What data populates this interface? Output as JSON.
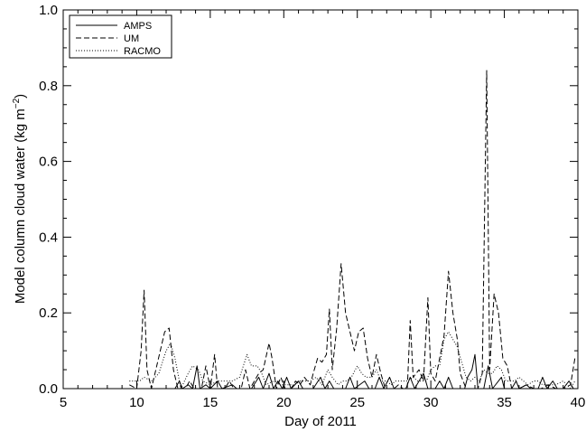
{
  "chart_data": {
    "type": "line",
    "xlabel": "Day of 2011",
    "ylabel_main": "Model column cloud water (kg m",
    "ylabel_sup": "−2",
    "ylabel_tail": ")",
    "xlim": [
      5,
      40
    ],
    "ylim": [
      0,
      1.0
    ],
    "x_ticks": [
      5,
      10,
      15,
      20,
      25,
      30,
      35,
      40
    ],
    "y_ticks": [
      0.0,
      0.2,
      0.4,
      0.6,
      0.8,
      1.0
    ],
    "x_tick_labels": [
      "5",
      "10",
      "15",
      "20",
      "25",
      "30",
      "35",
      "40"
    ],
    "y_tick_labels": [
      "0.0",
      "0.2",
      "0.4",
      "0.6",
      "0.8",
      "1.0"
    ],
    "grid": false,
    "legend_position": "top-left",
    "series": [
      {
        "name": "AMPS",
        "style": "solid",
        "points": [
          [
            9.5,
            0
          ],
          [
            12.6,
            0
          ],
          [
            12.9,
            0.02
          ],
          [
            13.1,
            0
          ],
          [
            13.5,
            0.01
          ],
          [
            13.8,
            0
          ],
          [
            14.1,
            0.06
          ],
          [
            14.3,
            0
          ],
          [
            14.7,
            0.01
          ],
          [
            15.0,
            0
          ],
          [
            15.5,
            0.02
          ],
          [
            15.8,
            0
          ],
          [
            16.5,
            0.01
          ],
          [
            16.8,
            0
          ],
          [
            17.8,
            0
          ],
          [
            18.3,
            0.03
          ],
          [
            18.6,
            0
          ],
          [
            19.0,
            0.04
          ],
          [
            19.3,
            0
          ],
          [
            19.6,
            0.02
          ],
          [
            19.9,
            0
          ],
          [
            20.2,
            0.03
          ],
          [
            20.5,
            0
          ],
          [
            21.0,
            0.02
          ],
          [
            21.3,
            0
          ],
          [
            22.0,
            0
          ],
          [
            22.5,
            0.03
          ],
          [
            22.8,
            0
          ],
          [
            23.1,
            0.02
          ],
          [
            23.4,
            0
          ],
          [
            24.2,
            0
          ],
          [
            24.5,
            0.03
          ],
          [
            24.8,
            0
          ],
          [
            25.5,
            0.02
          ],
          [
            25.8,
            0
          ],
          [
            26.2,
            0
          ],
          [
            26.5,
            0.03
          ],
          [
            26.8,
            0
          ],
          [
            27.2,
            0.03
          ],
          [
            27.5,
            0
          ],
          [
            28.3,
            0
          ],
          [
            28.6,
            0.03
          ],
          [
            28.9,
            0
          ],
          [
            29.5,
            0.04
          ],
          [
            29.8,
            0
          ],
          [
            30.3,
            0
          ],
          [
            30.6,
            0.02
          ],
          [
            30.9,
            0
          ],
          [
            31.2,
            0.03
          ],
          [
            31.5,
            0
          ],
          [
            32.3,
            0
          ],
          [
            32.5,
            0.03
          ],
          [
            32.8,
            0.05
          ],
          [
            33.0,
            0.09
          ],
          [
            33.2,
            0
          ],
          [
            33.6,
            0
          ],
          [
            33.9,
            0.06
          ],
          [
            34.2,
            0
          ],
          [
            34.8,
            0.03
          ],
          [
            35.0,
            0
          ],
          [
            35.5,
            0
          ],
          [
            35.8,
            0.02
          ],
          [
            36.0,
            0
          ],
          [
            36.5,
            0.01
          ],
          [
            36.8,
            0
          ],
          [
            37.3,
            0
          ],
          [
            37.6,
            0.03
          ],
          [
            37.9,
            0
          ],
          [
            38.3,
            0.02
          ],
          [
            38.6,
            0
          ],
          [
            39.0,
            0
          ],
          [
            39.4,
            0.02
          ],
          [
            39.7,
            0
          ]
        ]
      },
      {
        "name": "UM",
        "style": "dashed",
        "points": [
          [
            9.5,
            0.01
          ],
          [
            10.0,
            0
          ],
          [
            10.3,
            0.1
          ],
          [
            10.5,
            0.26
          ],
          [
            10.7,
            0.05
          ],
          [
            11.0,
            0
          ],
          [
            11.3,
            0.05
          ],
          [
            11.6,
            0.1
          ],
          [
            11.9,
            0.15
          ],
          [
            12.2,
            0.16
          ],
          [
            12.5,
            0.05
          ],
          [
            12.8,
            0
          ],
          [
            13.3,
            0
          ],
          [
            13.6,
            0.02
          ],
          [
            13.9,
            0
          ],
          [
            14.4,
            0
          ],
          [
            14.7,
            0.06
          ],
          [
            15.0,
            0
          ],
          [
            15.3,
            0.09
          ],
          [
            15.5,
            0
          ],
          [
            16.0,
            0
          ],
          [
            16.3,
            0.02
          ],
          [
            16.6,
            0
          ],
          [
            17.1,
            0
          ],
          [
            17.4,
            0.05
          ],
          [
            17.7,
            0
          ],
          [
            18.0,
            0.02
          ],
          [
            18.3,
            0.04
          ],
          [
            18.6,
            0.05
          ],
          [
            19.0,
            0.12
          ],
          [
            19.2,
            0.08
          ],
          [
            19.5,
            0
          ],
          [
            19.8,
            0.03
          ],
          [
            20.1,
            0
          ],
          [
            20.5,
            0
          ],
          [
            20.8,
            0.02
          ],
          [
            21.1,
            0.01
          ],
          [
            21.4,
            0.03
          ],
          [
            21.8,
            0.01
          ],
          [
            22.0,
            0.04
          ],
          [
            22.3,
            0.08
          ],
          [
            22.6,
            0.07
          ],
          [
            22.9,
            0.09
          ],
          [
            23.1,
            0.21
          ],
          [
            23.3,
            0.05
          ],
          [
            23.6,
            0.16
          ],
          [
            23.9,
            0.33
          ],
          [
            24.2,
            0.2
          ],
          [
            24.5,
            0.15
          ],
          [
            24.8,
            0.1
          ],
          [
            25.1,
            0.15
          ],
          [
            25.4,
            0.16
          ],
          [
            25.7,
            0.08
          ],
          [
            26.0,
            0.03
          ],
          [
            26.3,
            0.09
          ],
          [
            26.6,
            0.04
          ],
          [
            26.9,
            0
          ],
          [
            27.5,
            0
          ],
          [
            27.8,
            0.01
          ],
          [
            28.1,
            0
          ],
          [
            28.4,
            0
          ],
          [
            28.6,
            0.18
          ],
          [
            28.8,
            0.03
          ],
          [
            29.2,
            0.05
          ],
          [
            29.5,
            0.02
          ],
          [
            29.8,
            0.24
          ],
          [
            30.0,
            0.04
          ],
          [
            30.3,
            0.02
          ],
          [
            30.6,
            0.08
          ],
          [
            30.9,
            0.14
          ],
          [
            31.2,
            0.31
          ],
          [
            31.5,
            0.2
          ],
          [
            31.8,
            0.13
          ],
          [
            32.0,
            0.04
          ],
          [
            32.4,
            0
          ],
          [
            32.8,
            0
          ],
          [
            33.2,
            0
          ],
          [
            33.5,
            0.04
          ],
          [
            33.8,
            0.84
          ],
          [
            34.0,
            0.05
          ],
          [
            34.3,
            0.25
          ],
          [
            34.6,
            0.2
          ],
          [
            34.9,
            0.08
          ],
          [
            35.2,
            0.06
          ],
          [
            35.5,
            0
          ],
          [
            36.0,
            0
          ],
          [
            36.5,
            0.01
          ],
          [
            37.0,
            0
          ],
          [
            37.5,
            0
          ],
          [
            38.0,
            0.01
          ],
          [
            38.5,
            0
          ],
          [
            39.0,
            0
          ],
          [
            39.5,
            0.01
          ],
          [
            39.8,
            0.08
          ]
        ]
      },
      {
        "name": "RACMO",
        "style": "dotted",
        "points": [
          [
            9.5,
            0.02
          ],
          [
            10.2,
            0.02
          ],
          [
            10.5,
            0.03
          ],
          [
            11.0,
            0.02
          ],
          [
            11.5,
            0.04
          ],
          [
            12.0,
            0.1
          ],
          [
            12.3,
            0.12
          ],
          [
            12.6,
            0.08
          ],
          [
            13.0,
            0
          ],
          [
            13.5,
            0.04
          ],
          [
            13.8,
            0.06
          ],
          [
            14.2,
            0.05
          ],
          [
            14.5,
            0.02
          ],
          [
            15.0,
            0.01
          ],
          [
            15.5,
            0.02
          ],
          [
            16.0,
            0.02
          ],
          [
            16.5,
            0.02
          ],
          [
            17.0,
            0.03
          ],
          [
            17.5,
            0.09
          ],
          [
            17.8,
            0.06
          ],
          [
            18.2,
            0.06
          ],
          [
            18.5,
            0.04
          ],
          [
            18.8,
            0.01
          ],
          [
            19.3,
            0.02
          ],
          [
            19.8,
            0.01
          ],
          [
            20.2,
            0.01
          ],
          [
            20.7,
            0.01
          ],
          [
            21.0,
            0.02
          ],
          [
            21.3,
            0.02
          ],
          [
            21.8,
            0.02
          ],
          [
            22.2,
            0.03
          ],
          [
            22.6,
            0.01
          ],
          [
            23.0,
            0.05
          ],
          [
            23.3,
            0.03
          ],
          [
            23.7,
            0.01
          ],
          [
            24.0,
            0.02
          ],
          [
            24.3,
            0.02
          ],
          [
            24.6,
            0.03
          ],
          [
            25.0,
            0.06
          ],
          [
            25.3,
            0.04
          ],
          [
            25.6,
            0.03
          ],
          [
            26.0,
            0.03
          ],
          [
            26.3,
            0.05
          ],
          [
            26.6,
            0.02
          ],
          [
            27.0,
            0.02
          ],
          [
            27.3,
            0.01
          ],
          [
            27.6,
            0.02
          ],
          [
            28.0,
            0.02
          ],
          [
            28.4,
            0.02
          ],
          [
            28.8,
            0.03
          ],
          [
            29.1,
            0.02
          ],
          [
            29.4,
            0.02
          ],
          [
            29.7,
            0.02
          ],
          [
            30.0,
            0.05
          ],
          [
            30.3,
            0.06
          ],
          [
            30.6,
            0.06
          ],
          [
            30.9,
            0.13
          ],
          [
            31.2,
            0.15
          ],
          [
            31.5,
            0.13
          ],
          [
            31.8,
            0.11
          ],
          [
            32.1,
            0.07
          ],
          [
            32.4,
            0.03
          ],
          [
            32.7,
            0.02
          ],
          [
            33.0,
            0.03
          ],
          [
            33.3,
            0.02
          ],
          [
            33.6,
            0.05
          ],
          [
            33.9,
            0.04
          ],
          [
            34.2,
            0.04
          ],
          [
            34.5,
            0.06
          ],
          [
            34.8,
            0.05
          ],
          [
            35.1,
            0.02
          ],
          [
            35.4,
            0.02
          ],
          [
            35.7,
            0.02
          ],
          [
            36.0,
            0.03
          ],
          [
            36.3,
            0.02
          ],
          [
            36.6,
            0.01
          ],
          [
            37.0,
            0.02
          ],
          [
            37.3,
            0.02
          ],
          [
            37.6,
            0.01
          ],
          [
            38.0,
            0.01
          ],
          [
            38.5,
            0.01
          ],
          [
            39.0,
            0.02
          ],
          [
            39.5,
            0
          ],
          [
            39.8,
            0.02
          ]
        ]
      }
    ]
  }
}
